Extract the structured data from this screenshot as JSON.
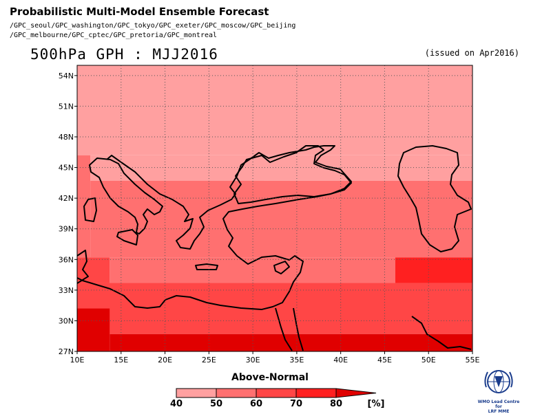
{
  "header": {
    "title": "Probabilistic Multi-Model Ensemble Forecast",
    "models_line1": "/GPC_seoul/GPC_washington/GPC_tokyo/GPC_exeter/GPC_moscow/GPC_beijing",
    "models_line2": "/GPC_melbourne/GPC_cptec/GPC_pretoria/GPC_montreal",
    "field": "500hPa GPH : MJJ2016",
    "issued": "(issued on Apr2016)"
  },
  "map": {
    "lon_range": [
      10,
      55
    ],
    "lat_range": [
      27,
      55
    ],
    "lon_ticks": [
      "10E",
      "15E",
      "20E",
      "25E",
      "30E",
      "35E",
      "40E",
      "45E",
      "50E",
      "55E"
    ],
    "lat_ticks": [
      "27N",
      "30N",
      "33N",
      "36N",
      "39N",
      "42N",
      "45N",
      "48N",
      "51N",
      "54N"
    ],
    "grid": "dotted",
    "regions": [
      {
        "category": "40-50",
        "lon": [
          10,
          55
        ],
        "lat": [
          46.2,
          55
        ]
      },
      {
        "category": "40-50",
        "lon": [
          11.5,
          55
        ],
        "lat": [
          43.7,
          46.2
        ]
      },
      {
        "category": "40-50",
        "lon": [
          13.7,
          31.3
        ],
        "lat": [
          41.2,
          43.7
        ]
      },
      {
        "category": "50-60",
        "lon": [
          10,
          11.5
        ],
        "lat": [
          36.2,
          46.2
        ]
      },
      {
        "category": "50-60",
        "lon": [
          11.5,
          55
        ],
        "lat": [
          36.2,
          43.7
        ]
      },
      {
        "category": "50-60",
        "lon": [
          13.7,
          46.2
        ],
        "lat": [
          33.7,
          36.2
        ]
      },
      {
        "category": "60-70",
        "lon": [
          10,
          13.7
        ],
        "lat": [
          33.7,
          36.2
        ]
      },
      {
        "category": "60-70",
        "lon": [
          10,
          55
        ],
        "lat": [
          28.7,
          33.7
        ]
      },
      {
        "category": "70-80",
        "lon": [
          46.2,
          55
        ],
        "lat": [
          33.7,
          36.2
        ]
      },
      {
        "category": "80+",
        "lon": [
          10,
          13.7
        ],
        "lat": [
          27,
          31.2
        ]
      },
      {
        "category": "80+",
        "lon": [
          13.7,
          55
        ],
        "lat": [
          27,
          28.7
        ]
      }
    ]
  },
  "colorbar": {
    "title": "Above-Normal",
    "unit_label": "[%]",
    "tick_labels": [
      "40",
      "50",
      "60",
      "70",
      "80"
    ],
    "categories": [
      "40-50",
      "50-60",
      "60-70",
      "70-80",
      "80+"
    ],
    "colors": [
      "#FFA0A0",
      "#FF7070",
      "#FF4646",
      "#FF2020",
      "#E00000"
    ]
  },
  "logo": {
    "line1": "WMO Lead Centre for",
    "line2": "LRF MME"
  }
}
